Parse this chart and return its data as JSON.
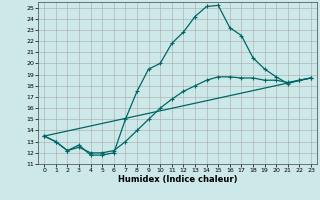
{
  "title": "",
  "xlabel": "Humidex (Indice chaleur)",
  "ylabel": "",
  "xlim": [
    -0.5,
    23.5
  ],
  "ylim": [
    11,
    25.5
  ],
  "yticks": [
    11,
    12,
    13,
    14,
    15,
    16,
    17,
    18,
    19,
    20,
    21,
    22,
    23,
    24,
    25
  ],
  "xticks": [
    0,
    1,
    2,
    3,
    4,
    5,
    6,
    7,
    8,
    9,
    10,
    11,
    12,
    13,
    14,
    15,
    16,
    17,
    18,
    19,
    20,
    21,
    22,
    23
  ],
  "bg_color": "#cce8e8",
  "grid_color": "#aaaaaa",
  "line_color": "#006666",
  "line1_x": [
    0,
    1,
    2,
    3,
    4,
    5,
    6,
    7,
    8,
    9,
    10,
    11,
    12,
    13,
    14,
    15,
    16,
    17,
    18,
    19,
    20,
    21,
    22,
    23
  ],
  "line1_y": [
    13.5,
    13.0,
    12.2,
    12.7,
    11.8,
    11.8,
    12.0,
    15.0,
    17.5,
    19.5,
    20.0,
    21.8,
    22.8,
    24.2,
    25.1,
    25.2,
    23.2,
    22.5,
    20.5,
    19.5,
    18.8,
    18.2,
    18.5,
    18.7
  ],
  "line2_x": [
    0,
    1,
    2,
    3,
    4,
    5,
    6,
    7,
    8,
    9,
    10,
    11,
    12,
    13,
    14,
    15,
    16,
    17,
    18,
    19,
    20,
    21,
    22,
    23
  ],
  "line2_y": [
    13.5,
    13.0,
    12.2,
    12.5,
    12.0,
    12.0,
    12.2,
    13.0,
    14.0,
    15.0,
    16.0,
    16.8,
    17.5,
    18.0,
    18.5,
    18.8,
    18.8,
    18.7,
    18.7,
    18.5,
    18.5,
    18.3,
    18.5,
    18.7
  ],
  "line3_x": [
    0,
    23
  ],
  "line3_y": [
    13.5,
    18.7
  ]
}
